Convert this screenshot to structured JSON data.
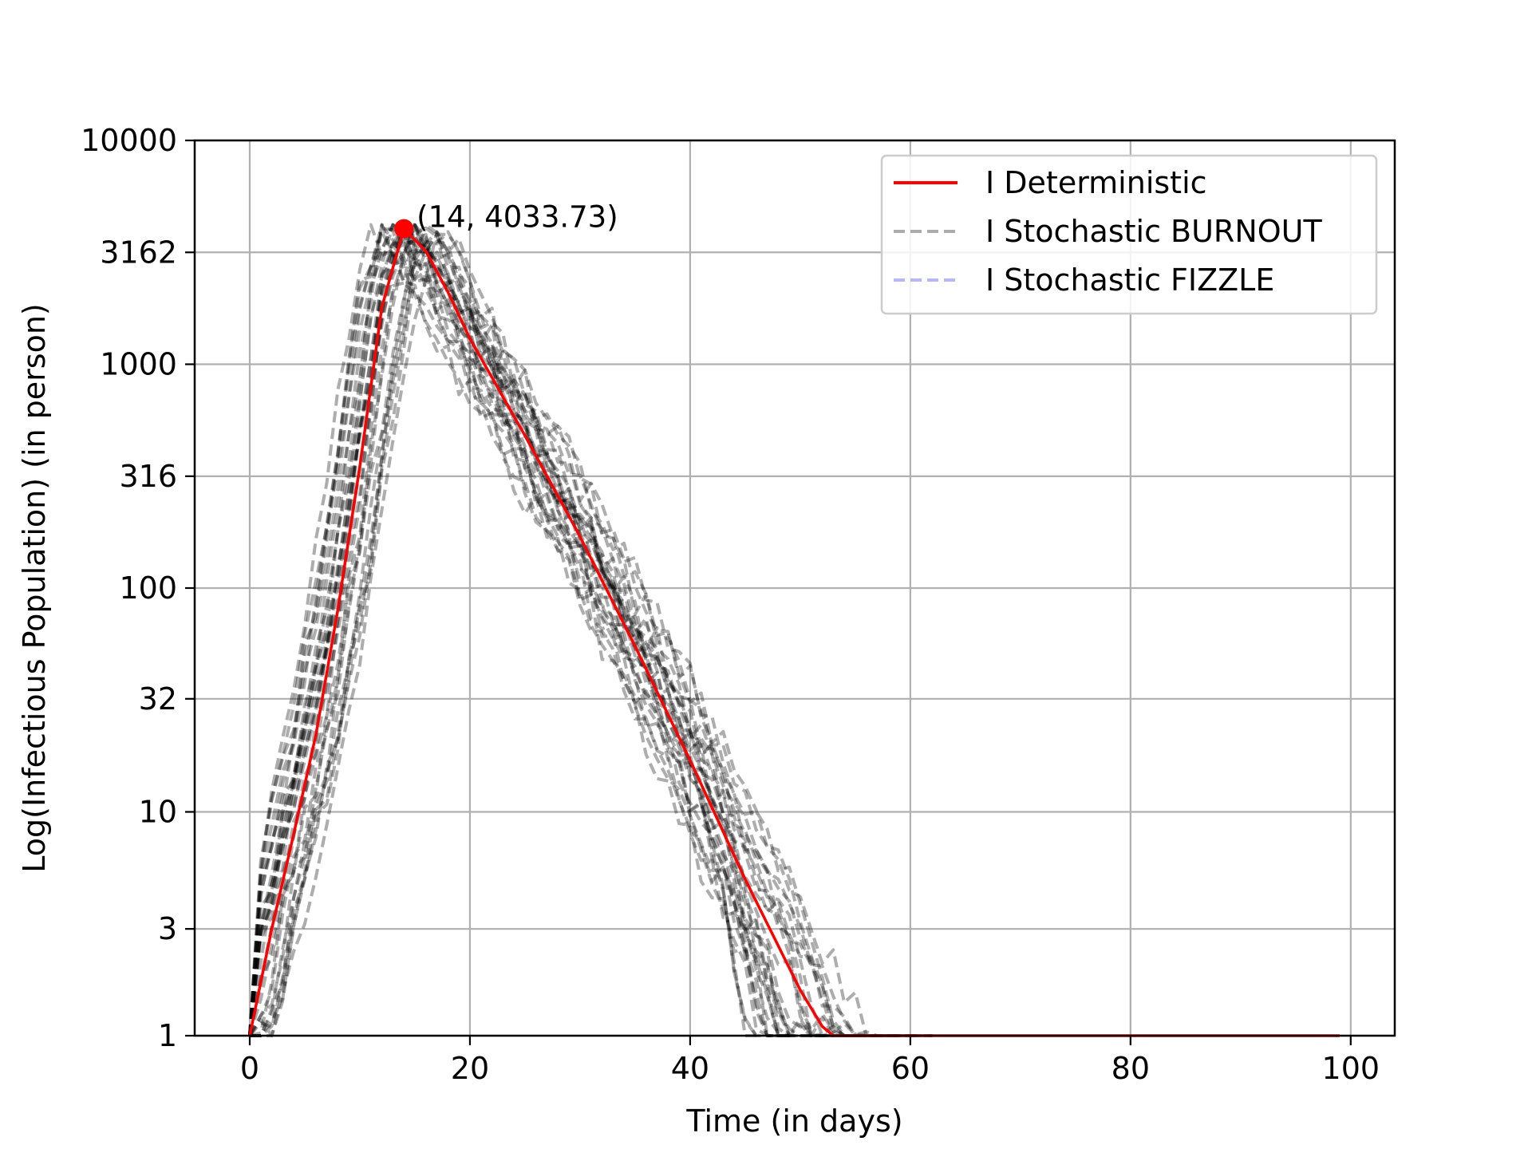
{
  "chart_data": {
    "type": "line",
    "title": "",
    "xlabel": "Time (in days)",
    "ylabel": "Log(Infectious Population) (in person)",
    "xlim": [
      -5,
      104
    ],
    "ylim": [
      1,
      10000
    ],
    "yscale": "log",
    "xticks": [
      0,
      20,
      40,
      60,
      80,
      100
    ],
    "yticks": [
      1,
      3,
      10,
      32,
      100,
      316,
      1000,
      3162,
      10000
    ],
    "ytick_labels": [
      "1",
      "3",
      "10",
      "32",
      "100",
      "316",
      "1000",
      "3162",
      "10000"
    ],
    "grid": true,
    "legend_position": "top-right",
    "legend": [
      {
        "label": "I Deterministic",
        "color": "#ff0000",
        "style": "solid"
      },
      {
        "label": "I Stochastic BURNOUT",
        "color": "#808080",
        "style": "dashed"
      },
      {
        "label": "I Stochastic FIZZLE",
        "color": "#9999ff",
        "style": "dashed"
      }
    ],
    "annotation": {
      "x": 14,
      "y": 4033.73,
      "text": "(14, 4033.73)",
      "color": "#ff0000"
    },
    "series": [
      {
        "name": "I Deterministic",
        "color": "#ff0000",
        "x": [
          0,
          2,
          4,
          6,
          8,
          10,
          12,
          14,
          16,
          18,
          20,
          25,
          30,
          35,
          40,
          45,
          50,
          52,
          53,
          54,
          99
        ],
        "y": [
          1,
          3,
          8,
          22,
          80,
          350,
          1800,
          4033.73,
          3200,
          2100,
          1300,
          480,
          170,
          55,
          17,
          5,
          1.6,
          1.1,
          1,
          1,
          1
        ]
      }
    ],
    "stochastic_runs": {
      "name": "I Stochastic BURNOUT",
      "color": "#000000",
      "opacity": 0.32,
      "count": 30,
      "extinction_day_range": [
        45,
        63
      ]
    }
  }
}
